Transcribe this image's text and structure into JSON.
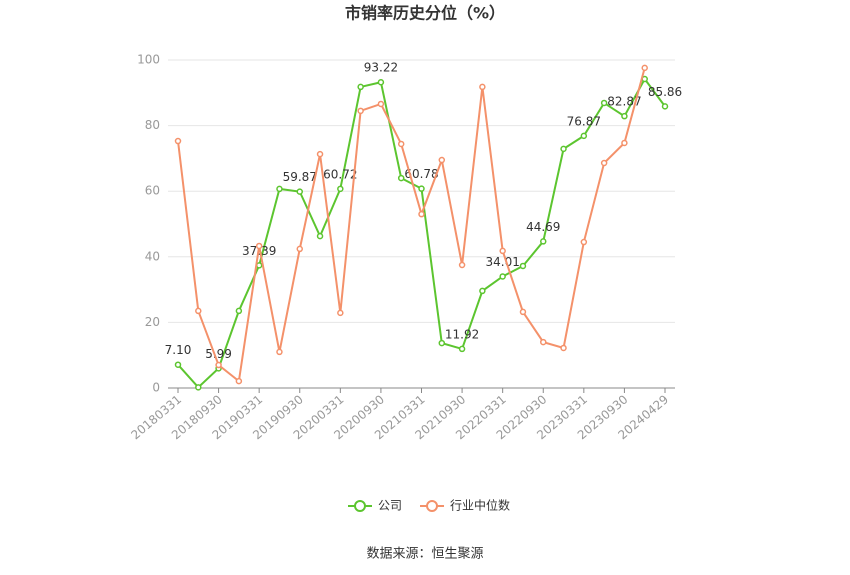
{
  "chart_data": {
    "type": "line",
    "title": "市销率历史分位（%）",
    "categories": [
      "20180331",
      null,
      "20180930",
      null,
      "20190331",
      null,
      "20190930",
      null,
      "20200331",
      null,
      "20200930",
      null,
      "20210331",
      null,
      "20210930",
      null,
      "20220331",
      null,
      "20220930",
      null,
      "20230331",
      null,
      "20230930",
      null,
      "20240429"
    ],
    "series": [
      {
        "name": "公司",
        "color": "#5cc52f",
        "values": [
          7.1,
          0.2,
          5.99,
          23.5,
          37.39,
          60.7,
          59.87,
          46.3,
          60.72,
          91.8,
          93.22,
          64.0,
          60.78,
          13.7,
          11.92,
          29.6,
          34.01,
          37.2,
          44.69,
          72.9,
          76.87,
          86.9,
          82.87,
          94.2,
          85.86
        ],
        "value_labels": [
          "7.10",
          null,
          "5.99",
          null,
          "37.39",
          null,
          "59.87",
          null,
          "60.72",
          null,
          "93.22",
          null,
          "60.78",
          null,
          "11.92",
          null,
          "34.01",
          null,
          "44.69",
          null,
          "76.87",
          null,
          "82.87",
          null,
          "85.86"
        ]
      },
      {
        "name": "行业中位数",
        "color": "#f4916a",
        "values": [
          75.3,
          23.5,
          7.0,
          2.1,
          43.3,
          11.0,
          42.4,
          71.3,
          22.9,
          84.5,
          86.6,
          74.4,
          53.0,
          69.5,
          37.5,
          91.8,
          41.8,
          23.2,
          14.0,
          12.2,
          44.5,
          68.6,
          74.7,
          97.6,
          null
        ]
      }
    ],
    "ylim": [
      0,
      100
    ],
    "yticks": [
      0,
      20,
      40,
      60,
      80,
      100
    ],
    "grid": true,
    "source": "数据来源：恒生聚源"
  }
}
